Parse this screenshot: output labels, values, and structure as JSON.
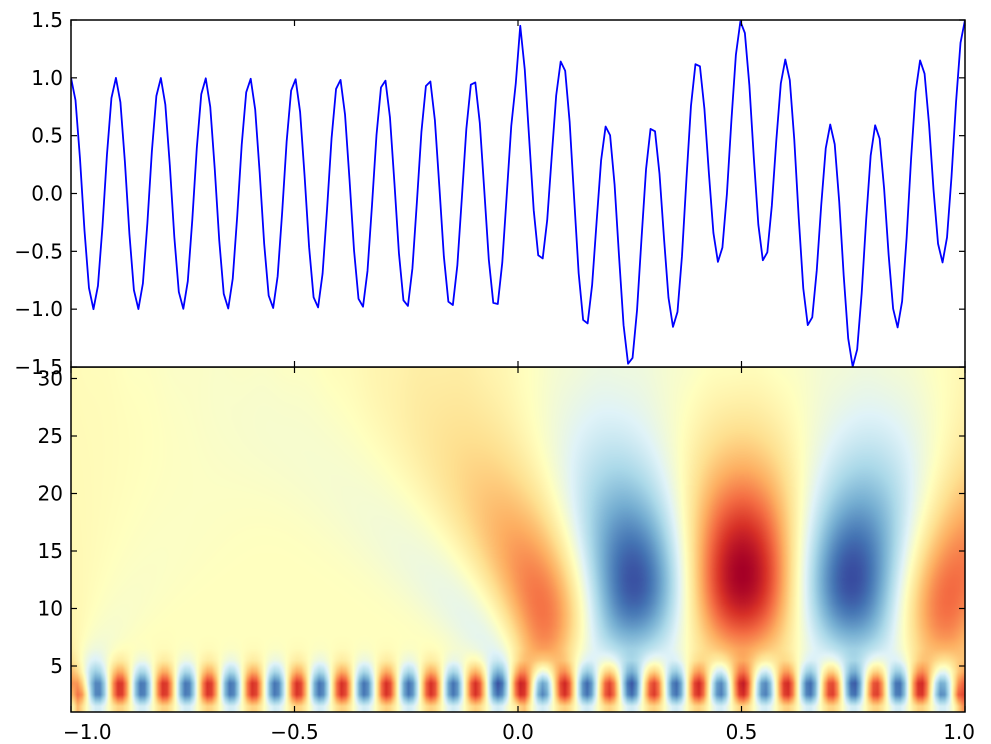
{
  "colors": {
    "line": "#0000ff",
    "axes": "#000000",
    "colormap": [
      "#a50026",
      "#d73027",
      "#f46d43",
      "#fdae61",
      "#fee090",
      "#ffffbf",
      "#e0f3f8",
      "#abd9e9",
      "#74add1",
      "#4575b4",
      "#313695"
    ]
  },
  "chart_data": [
    {
      "type": "line",
      "title": "",
      "xlabel": "",
      "ylabel": "",
      "xlim": [
        -1.0,
        1.0
      ],
      "ylim": [
        -1.5,
        1.5
      ],
      "grid": false,
      "yticks": [
        {
          "value": 1.5,
          "label": "1.5"
        },
        {
          "value": 1.0,
          "label": "1.0"
        },
        {
          "value": 0.5,
          "label": "0.5"
        },
        {
          "value": 0.0,
          "label": "0.0"
        },
        {
          "value": -0.5,
          "label": "−0.5"
        },
        {
          "value": -1.0,
          "label": "−1.0"
        },
        {
          "value": -1.5,
          "label": "−1.5"
        }
      ],
      "signal": {
        "x_start": -1.0,
        "x_end": 1.0,
        "sample_count": 200,
        "components": [
          {
            "x_from": -1.0,
            "x_to": 1.0,
            "function": "cos",
            "frequency_hz": 10,
            "amplitude": 1.0
          },
          {
            "x_from": 0.0,
            "x_to": 1.0,
            "function": "cos",
            "frequency_hz": 2,
            "amplitude": 0.5,
            "phase_offset": 0.0
          }
        ]
      }
    },
    {
      "type": "heatmap",
      "title": "",
      "xlabel": "",
      "ylabel": "",
      "xlim": [
        -1.0,
        1.0
      ],
      "ylim": [
        1,
        31
      ],
      "colormap": "RdYlBu_r",
      "description_of_values": "continuous wavelet transform magnitude; widths 1 to 31",
      "xticks": [
        {
          "value": -1.0,
          "label": "−1.0"
        },
        {
          "value": -0.5,
          "label": "−0.5"
        },
        {
          "value": 0.0,
          "label": "0.0"
        },
        {
          "value": 0.5,
          "label": "0.5"
        },
        {
          "value": 1.0,
          "label": "1.0"
        }
      ],
      "yticks": [
        {
          "value": 30,
          "label": "30"
        },
        {
          "value": 25,
          "label": "25"
        },
        {
          "value": 20,
          "label": "20"
        },
        {
          "value": 15,
          "label": "15"
        },
        {
          "value": 10,
          "label": "10"
        },
        {
          "value": 5,
          "label": "5"
        }
      ]
    }
  ]
}
